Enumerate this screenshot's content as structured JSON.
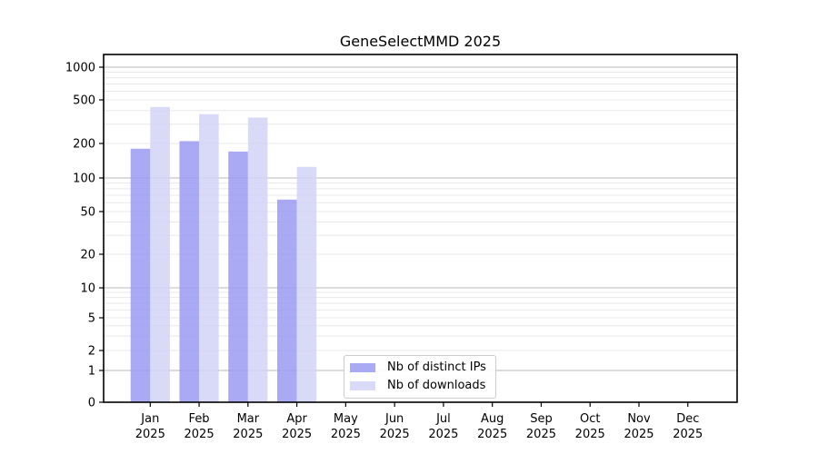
{
  "chart_data": {
    "type": "bar",
    "title": "GeneSelectMMD 2025",
    "xlabel": "",
    "ylabel": "",
    "yscale": "symlog",
    "ylim": [
      0,
      1300
    ],
    "yticks": [
      0,
      1,
      2,
      5,
      10,
      20,
      50,
      100,
      200,
      500,
      1000
    ],
    "minor_grid_values": [
      3,
      4,
      6,
      7,
      8,
      9,
      30,
      40,
      60,
      70,
      80,
      90,
      300,
      400,
      600,
      700,
      800,
      900
    ],
    "grid": {
      "major": true,
      "minor": true
    },
    "legend_position": "lower center",
    "categories": [
      {
        "label": "Jan",
        "sublabel": "2025"
      },
      {
        "label": "Feb",
        "sublabel": "2025"
      },
      {
        "label": "Mar",
        "sublabel": "2025"
      },
      {
        "label": "Apr",
        "sublabel": "2025"
      },
      {
        "label": "May",
        "sublabel": "2025"
      },
      {
        "label": "Jun",
        "sublabel": "2025"
      },
      {
        "label": "Jul",
        "sublabel": "2025"
      },
      {
        "label": "Aug",
        "sublabel": "2025"
      },
      {
        "label": "Sep",
        "sublabel": "2025"
      },
      {
        "label": "Oct",
        "sublabel": "2025"
      },
      {
        "label": "Nov",
        "sublabel": "2025"
      },
      {
        "label": "Dec",
        "sublabel": "2025"
      }
    ],
    "series": [
      {
        "name": "Nb of distinct IPs",
        "color": "#a9a9f4",
        "values": [
          180,
          210,
          170,
          64,
          null,
          null,
          null,
          null,
          null,
          null,
          null,
          null
        ]
      },
      {
        "name": "Nb of downloads",
        "color": "#d9d9f8",
        "values": [
          430,
          370,
          345,
          125,
          null,
          null,
          null,
          null,
          null,
          null,
          null,
          null
        ]
      }
    ],
    "colors": {
      "major_grid": "#b8b8b8",
      "minor_grid": "#e8e8e8",
      "axis": "#000000",
      "text": "#000000"
    }
  }
}
